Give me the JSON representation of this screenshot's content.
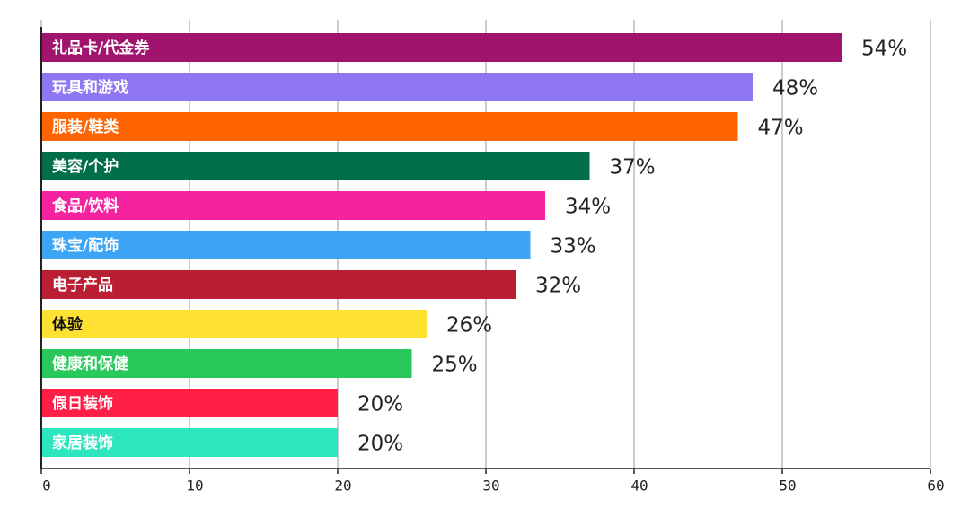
{
  "chart_data": {
    "type": "bar",
    "orientation": "horizontal",
    "categories": [
      "礼品卡/代金券",
      "玩具和游戏",
      "服装/鞋类",
      "美容/个护",
      "食品/饮料",
      "珠宝/配饰",
      "电子产品",
      "体验",
      "健康和保健",
      "假日装饰",
      "家居装饰"
    ],
    "values": [
      54,
      48,
      47,
      37,
      34,
      33,
      32,
      26,
      25,
      20,
      20
    ],
    "value_labels": [
      "54%",
      "48%",
      "47%",
      "37%",
      "34%",
      "33%",
      "32%",
      "26%",
      "25%",
      "20%",
      "20%"
    ],
    "colors": [
      "#a0146e",
      "#8f76f2",
      "#ff6400",
      "#006e4b",
      "#f523a0",
      "#3ca5f5",
      "#b91e32",
      "#ffe132",
      "#28c85a",
      "#ff1e46",
      "#2de6be"
    ],
    "xlim": [
      0,
      60
    ],
    "xticks": [
      0,
      10,
      20,
      30,
      40,
      50,
      60
    ],
    "grid": true
  }
}
